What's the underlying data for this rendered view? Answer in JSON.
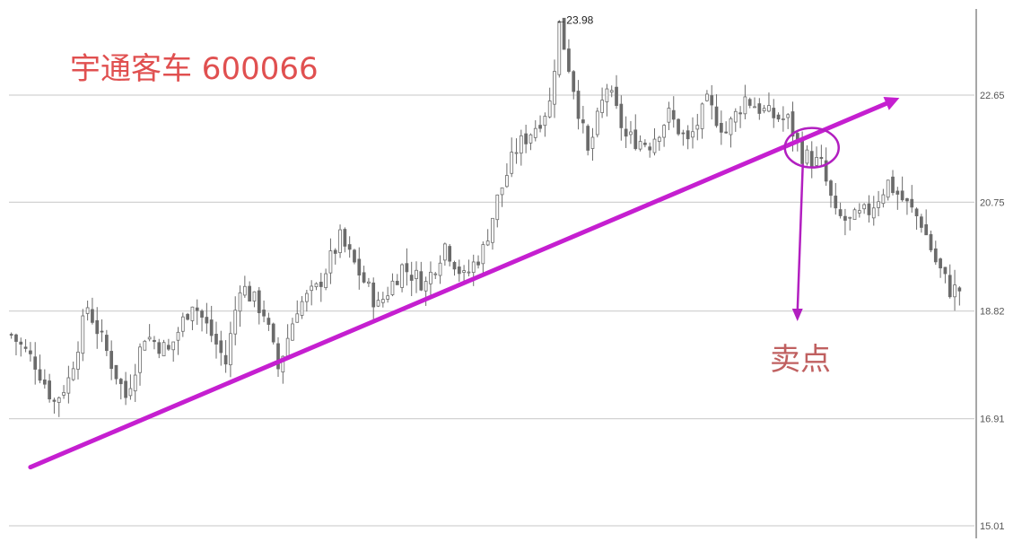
{
  "chart_data": {
    "type": "candlestick",
    "title": "宇通客车 600066",
    "peak_label": "←23.98",
    "annotation": "卖点",
    "y_ticks": [
      {
        "value": 15.01,
        "label": "15.01"
      },
      {
        "value": 16.91,
        "label": "16.91"
      },
      {
        "value": 18.82,
        "label": "18.82"
      },
      {
        "value": 20.75,
        "label": "20.75"
      },
      {
        "value": 22.65,
        "label": "22.65"
      }
    ],
    "ylim": [
      15.01,
      24.6
    ],
    "n_bars": 200,
    "peak": {
      "value": 23.98,
      "index": 115
    },
    "trend_line": {
      "start": {
        "index": 4,
        "value": 16.05
      },
      "end": {
        "index": 185,
        "value": 22.55
      }
    },
    "breakdown_point": {
      "index": 168
    },
    "price_path": [
      {
        "i": 0,
        "v": 18.4
      },
      {
        "i": 5,
        "v": 17.9
      },
      {
        "i": 9,
        "v": 17.2
      },
      {
        "i": 12,
        "v": 17.6
      },
      {
        "i": 16,
        "v": 18.9
      },
      {
        "i": 20,
        "v": 18.1
      },
      {
        "i": 24,
        "v": 17.3
      },
      {
        "i": 28,
        "v": 18.4
      },
      {
        "i": 33,
        "v": 18.1
      },
      {
        "i": 38,
        "v": 19.0
      },
      {
        "i": 42,
        "v": 18.4
      },
      {
        "i": 45,
        "v": 17.9
      },
      {
        "i": 48,
        "v": 19.3
      },
      {
        "i": 53,
        "v": 18.8
      },
      {
        "i": 56,
        "v": 17.8
      },
      {
        "i": 60,
        "v": 18.9
      },
      {
        "i": 64,
        "v": 19.2
      },
      {
        "i": 69,
        "v": 20.1
      },
      {
        "i": 73,
        "v": 19.5
      },
      {
        "i": 77,
        "v": 18.9
      },
      {
        "i": 82,
        "v": 19.6
      },
      {
        "i": 87,
        "v": 19.3
      },
      {
        "i": 91,
        "v": 20.0
      },
      {
        "i": 95,
        "v": 19.4
      },
      {
        "i": 99,
        "v": 19.9
      },
      {
        "i": 102,
        "v": 20.8
      },
      {
        "i": 106,
        "v": 21.7
      },
      {
        "i": 110,
        "v": 22.1
      },
      {
        "i": 113,
        "v": 22.5
      },
      {
        "i": 115,
        "v": 23.9
      },
      {
        "i": 118,
        "v": 22.8
      },
      {
        "i": 121,
        "v": 21.6
      },
      {
        "i": 125,
        "v": 22.8
      },
      {
        "i": 129,
        "v": 21.9
      },
      {
        "i": 134,
        "v": 21.8
      },
      {
        "i": 138,
        "v": 22.3
      },
      {
        "i": 142,
        "v": 21.8
      },
      {
        "i": 146,
        "v": 22.5
      },
      {
        "i": 150,
        "v": 22.0
      },
      {
        "i": 154,
        "v": 22.6
      },
      {
        "i": 159,
        "v": 22.3
      },
      {
        "i": 163,
        "v": 22.2
      },
      {
        "i": 166,
        "v": 21.6
      },
      {
        "i": 170,
        "v": 21.4
      },
      {
        "i": 173,
        "v": 20.5
      },
      {
        "i": 176,
        "v": 20.4
      },
      {
        "i": 180,
        "v": 20.6
      },
      {
        "i": 184,
        "v": 21.1
      },
      {
        "i": 187,
        "v": 20.8
      },
      {
        "i": 191,
        "v": 20.4
      },
      {
        "i": 194,
        "v": 19.7
      },
      {
        "i": 197,
        "v": 19.2
      }
    ],
    "grid": true,
    "colors": {
      "candles": "#6b6b6b",
      "trend_line": "#c51fd0",
      "annotation": "#b21fc0",
      "title": "#e05050",
      "note": "#c06060",
      "grid": "#d2d2d2"
    }
  }
}
